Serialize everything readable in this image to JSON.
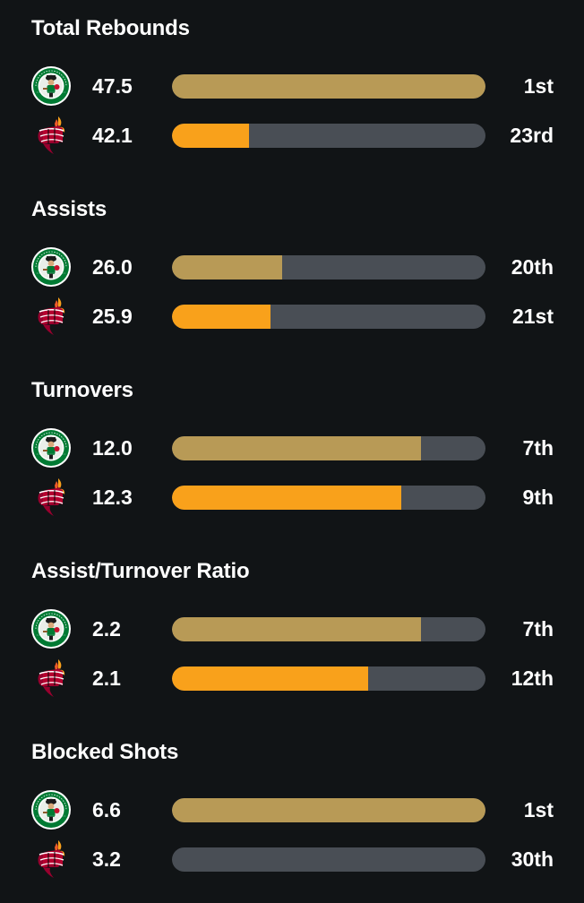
{
  "colors": {
    "background": "#111416",
    "track": "#494e55",
    "celtics_bar": "#b89a56",
    "heat_bar": "#f9a11b",
    "text": "#ffffff"
  },
  "teams": [
    {
      "key": "celtics",
      "logo_icon": "celtics-logo-icon"
    },
    {
      "key": "heat",
      "logo_icon": "heat-logo-icon"
    }
  ],
  "stats": [
    {
      "title": "Total Rebounds",
      "rows": [
        {
          "team": "celtics",
          "value": "47.5",
          "rank": "1st",
          "fill_percent": 100
        },
        {
          "team": "heat",
          "value": "42.1",
          "rank": "23rd",
          "fill_percent": 24.5
        }
      ]
    },
    {
      "title": "Assists",
      "rows": [
        {
          "team": "celtics",
          "value": "26.0",
          "rank": "20th",
          "fill_percent": 35
        },
        {
          "team": "heat",
          "value": "25.9",
          "rank": "21st",
          "fill_percent": 31.5
        }
      ]
    },
    {
      "title": "Turnovers",
      "rows": [
        {
          "team": "celtics",
          "value": "12.0",
          "rank": "7th",
          "fill_percent": 79.5
        },
        {
          "team": "heat",
          "value": "12.3",
          "rank": "9th",
          "fill_percent": 73
        }
      ]
    },
    {
      "title": "Assist/Turnover Ratio",
      "rows": [
        {
          "team": "celtics",
          "value": "2.2",
          "rank": "7th",
          "fill_percent": 79.5
        },
        {
          "team": "heat",
          "value": "2.1",
          "rank": "12th",
          "fill_percent": 62.5
        }
      ]
    },
    {
      "title": "Blocked Shots",
      "rows": [
        {
          "team": "celtics",
          "value": "6.6",
          "rank": "1st",
          "fill_percent": 100
        },
        {
          "team": "heat",
          "value": "3.2",
          "rank": "30th",
          "fill_percent": 0
        }
      ]
    }
  ]
}
